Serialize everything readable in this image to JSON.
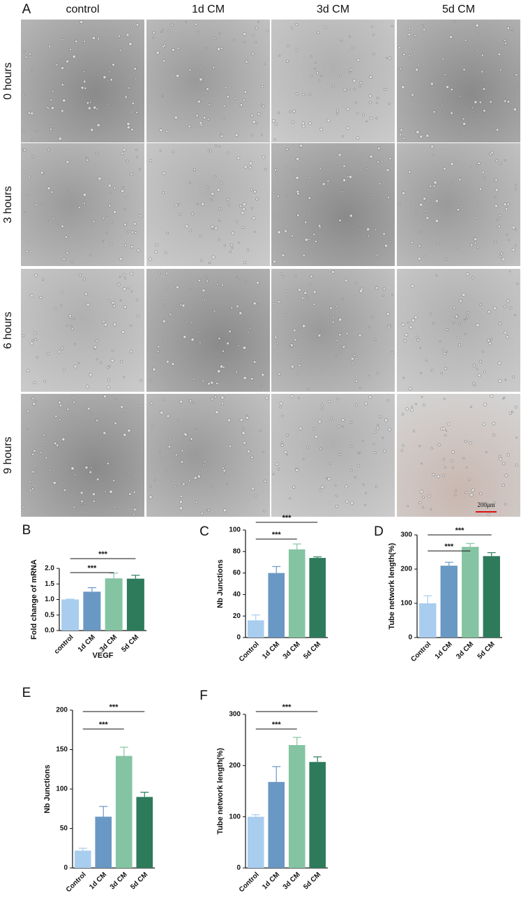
{
  "panel_a": {
    "panel": "A",
    "columns": [
      "control",
      "1d CM",
      "3d CM",
      "5d CM"
    ],
    "rows": [
      "0 hours",
      "3 hours",
      "6 hours",
      "9 hours"
    ],
    "scale_bar": "200μm"
  },
  "chart_data": [
    {
      "type": "bar",
      "panel": "B",
      "ylabel": "Fold change of mRNA",
      "xlabel": "VEGF",
      "categories": [
        "control",
        "1d CM",
        "3d CM",
        "5d CM"
      ],
      "values": [
        1.0,
        1.25,
        1.68,
        1.67
      ],
      "errors": [
        0.01,
        0.13,
        0.17,
        0.11
      ],
      "colors": [
        "#a8cdee",
        "#6a98c4",
        "#84c4a2",
        "#2e7b5c"
      ],
      "ylim": [
        0,
        2
      ],
      "yticks": [
        {
          "value": 0,
          "label": "0.0"
        },
        {
          "value": 0.5,
          "label": "0.5"
        },
        {
          "value": 1,
          "label": "1.0"
        },
        {
          "value": 1.5,
          "label": "1.5"
        },
        {
          "value": 2,
          "label": "2.0"
        }
      ],
      "annotations": [
        "***",
        "***"
      ]
    },
    {
      "type": "bar",
      "panel": "C",
      "ylabel": "Nb Junctions",
      "categories": [
        "Control",
        "1d CM",
        "3d CM",
        "5d CM"
      ],
      "values": [
        16,
        60,
        82,
        74
      ],
      "errors": [
        5,
        6,
        5,
        1
      ],
      "colors": [
        "#a8cdee",
        "#6a98c4",
        "#84c4a2",
        "#2e7b5c"
      ],
      "ylim": [
        0,
        100
      ],
      "yticks": [
        0,
        20,
        40,
        60,
        80,
        100
      ],
      "annotations": [
        "***",
        "***"
      ]
    },
    {
      "type": "bar",
      "panel": "D",
      "ylabel": "Tube network length(%)",
      "categories": [
        "Control",
        "1d CM",
        "3d CM",
        "5d CM"
      ],
      "values": [
        100,
        210,
        265,
        238
      ],
      "errors": [
        22,
        10,
        10,
        10
      ],
      "colors": [
        "#a8cdee",
        "#6a98c4",
        "#84c4a2",
        "#2e7b5c"
      ],
      "ylim": [
        0,
        300
      ],
      "yticks": [
        0,
        100,
        200,
        300
      ],
      "annotations": [
        "***",
        "***"
      ]
    },
    {
      "type": "bar",
      "panel": "E",
      "ylabel": "Nb Junctions",
      "categories": [
        "Control",
        "1d CM",
        "3d CM",
        "5d CM"
      ],
      "values": [
        22,
        65,
        142,
        90
      ],
      "errors": [
        3,
        13,
        11,
        6
      ],
      "colors": [
        "#a8cdee",
        "#6a98c4",
        "#84c4a2",
        "#2e7b5c"
      ],
      "ylim": [
        0,
        200
      ],
      "yticks": [
        0,
        50,
        100,
        150,
        200
      ],
      "annotations": [
        "***",
        "***"
      ]
    },
    {
      "type": "bar",
      "panel": "F",
      "ylabel": "Tube network length(%)",
      "categories": [
        "Control",
        "1d CM",
        "3d CM",
        "5d CM"
      ],
      "values": [
        100,
        168,
        240,
        207
      ],
      "errors": [
        4,
        30,
        15,
        10
      ],
      "colors": [
        "#a8cdee",
        "#6a98c4",
        "#84c4a2",
        "#2e7b5c"
      ],
      "ylim": [
        0,
        300
      ],
      "yticks": [
        0,
        100,
        200,
        300
      ],
      "annotations": [
        "***",
        "***"
      ]
    }
  ]
}
